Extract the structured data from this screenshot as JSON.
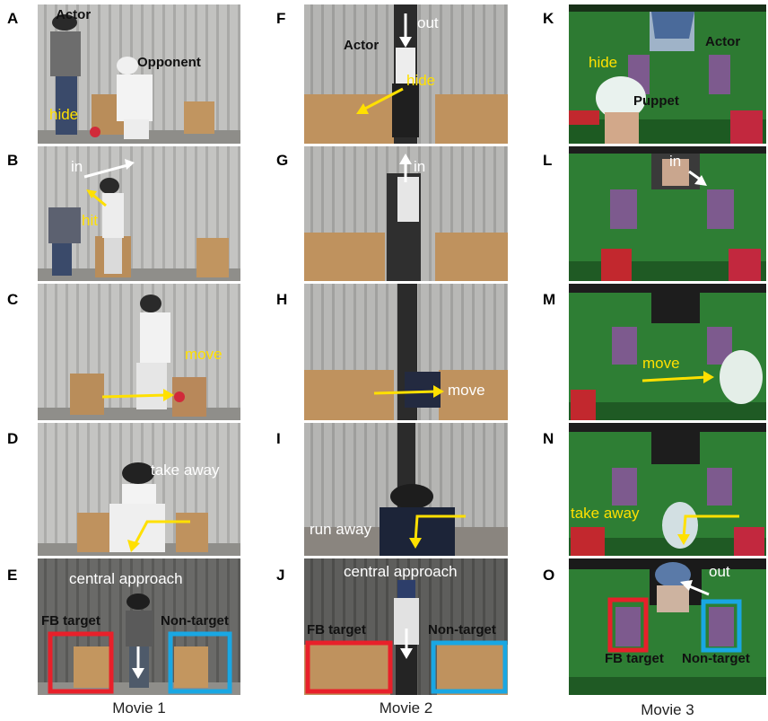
{
  "panel_letters": [
    "A",
    "B",
    "C",
    "D",
    "E",
    "F",
    "G",
    "H",
    "I",
    "J",
    "K",
    "L",
    "M",
    "N",
    "O"
  ],
  "movie1": {
    "caption": "Movie 1",
    "A": {
      "actor": "Actor",
      "opponent": "Opponent",
      "hide": "hide"
    },
    "B": {
      "in": "in",
      "hit": "hit"
    },
    "C": {
      "move": "move"
    },
    "D": {
      "take_away": "take away"
    },
    "E": {
      "central_approach": "central approach",
      "fb_target": "FB target",
      "non_target": "Non-target"
    }
  },
  "movie2": {
    "caption": "Movie 2",
    "F": {
      "out": "out",
      "actor": "Actor",
      "hide": "hide"
    },
    "G": {
      "in": "in"
    },
    "H": {
      "move": "move"
    },
    "I": {
      "run_away": "run away"
    },
    "J": {
      "central_approach": "central approach",
      "fb_target": "FB target",
      "non_target": "Non-target"
    }
  },
  "movie3": {
    "caption": "Movie 3",
    "K": {
      "actor": "Actor",
      "hide": "hide",
      "puppet": "Puppet"
    },
    "L": {
      "in": "in"
    },
    "M": {
      "move": "move"
    },
    "N": {
      "take_away": "take away"
    },
    "O": {
      "out": "out",
      "fb_target": "FB target",
      "non_target": "Non-target"
    }
  },
  "colors": {
    "arrow_yellow": "#ffe000",
    "arrow_white": "#ffffff",
    "fb_box": "#e8202a",
    "nontarget_box": "#19a7e3"
  }
}
